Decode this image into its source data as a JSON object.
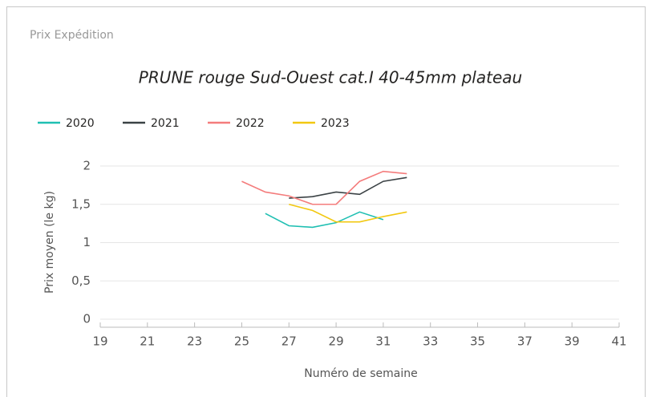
{
  "panel_title": "Prix Expédition",
  "chart_data": {
    "type": "line",
    "title": "PRUNE rouge Sud-Ouest cat.I 40-45mm plateau",
    "x_label": "Numéro de semaine",
    "y_label": "Prix moyen  (le kg)",
    "x": [
      25,
      26,
      27,
      28,
      29,
      30,
      31,
      32
    ],
    "series": [
      {
        "name": "2020",
        "color": "#1fbfb2",
        "values": [
          null,
          1.38,
          1.22,
          1.2,
          1.26,
          1.4,
          1.3,
          null
        ]
      },
      {
        "name": "2021",
        "color": "#3b4245",
        "values": [
          null,
          null,
          1.58,
          1.6,
          1.66,
          1.63,
          1.8,
          1.85
        ]
      },
      {
        "name": "2022",
        "color": "#f47c7c",
        "values": [
          1.8,
          1.66,
          1.61,
          1.5,
          1.5,
          1.8,
          1.93,
          1.9
        ]
      },
      {
        "name": "2023",
        "color": "#f2c811",
        "values": [
          null,
          null,
          1.5,
          1.42,
          1.27,
          1.27,
          1.34,
          1.4
        ]
      }
    ],
    "xlim": [
      19,
      41
    ],
    "xticks": [
      19,
      21,
      23,
      25,
      27,
      29,
      31,
      33,
      35,
      37,
      39,
      41
    ],
    "ylim": [
      0,
      2
    ],
    "yticks": [
      0,
      {
        "value": 0.5,
        "label": "0,5"
      },
      1,
      {
        "value": 1.5,
        "label": "1,5"
      },
      2
    ],
    "grid": true,
    "legend": "top-left"
  }
}
